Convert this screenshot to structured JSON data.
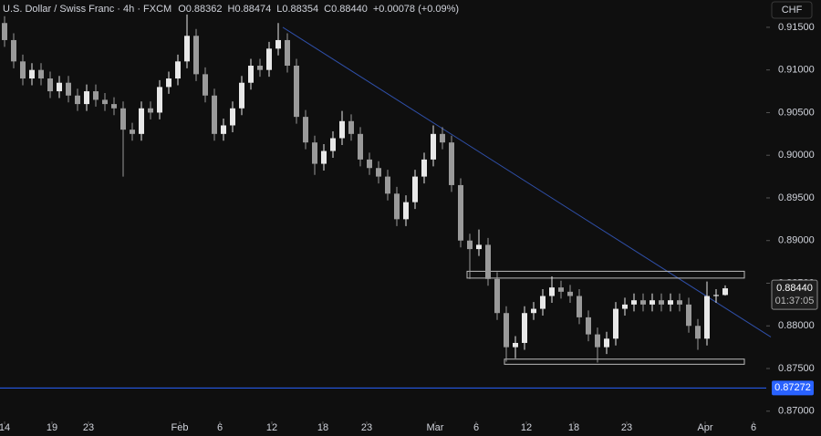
{
  "chart_data": {
    "type": "candlestick",
    "header": {
      "title": "U.S. Dollar / Swiss Franc · 4h · FXCM",
      "open": "O0.88362",
      "high": "H0.88474",
      "low": "L0.88354",
      "close": "C0.88440",
      "change": "+0.00078 (+0.09%)"
    },
    "currency": "CHF",
    "up_color": "#e8e8e8",
    "down_color": "#9a9a9a",
    "x": [
      0,
      1,
      2,
      3,
      4,
      5,
      6,
      7,
      8,
      9,
      10,
      11,
      12,
      13,
      14,
      15,
      16,
      17,
      18,
      19,
      20,
      21,
      22,
      23,
      24,
      25,
      26,
      27,
      28,
      29,
      30,
      31,
      32,
      33,
      34,
      35,
      36,
      37,
      38,
      39,
      40,
      41,
      42,
      43,
      44,
      45,
      46,
      47,
      48,
      49,
      50,
      51,
      52,
      53,
      54,
      55,
      56,
      57,
      58,
      59,
      60,
      61,
      62,
      63,
      64,
      65,
      66,
      67,
      68,
      69,
      70,
      71,
      72,
      73,
      74,
      75,
      76,
      77,
      78,
      79
    ],
    "open": [
      0.9155,
      0.9135,
      0.911,
      0.909,
      0.91,
      0.909,
      0.9075,
      0.9085,
      0.907,
      0.906,
      0.9075,
      0.9065,
      0.906,
      0.9055,
      0.903,
      0.9025,
      0.9055,
      0.905,
      0.908,
      0.909,
      0.911,
      0.914,
      0.9095,
      0.907,
      0.9025,
      0.9035,
      0.9055,
      0.9085,
      0.9105,
      0.91,
      0.9125,
      0.9135,
      0.9105,
      0.9045,
      0.9015,
      0.899,
      0.9005,
      0.902,
      0.904,
      0.9025,
      0.8995,
      0.8985,
      0.8975,
      0.8955,
      0.8925,
      0.8945,
      0.8975,
      0.8995,
      0.9025,
      0.9015,
      0.8965,
      0.89,
      0.889,
      0.8895,
      0.8855,
      0.8815,
      0.8775,
      0.878,
      0.8815,
      0.882,
      0.8835,
      0.8845,
      0.884,
      0.8835,
      0.881,
      0.879,
      0.8775,
      0.8785,
      0.882,
      0.8825,
      0.883,
      0.8825,
      0.883,
      0.8825,
      0.883,
      0.8825,
      0.88,
      0.8785,
      0.8835,
      0.88362
    ],
    "high": [
      0.9163,
      0.9143,
      0.9118,
      0.9108,
      0.9108,
      0.9098,
      0.9093,
      0.9093,
      0.9078,
      0.9083,
      0.9083,
      0.9073,
      0.9068,
      0.9063,
      0.9038,
      0.9063,
      0.9063,
      0.9088,
      0.9098,
      0.9118,
      0.9165,
      0.9148,
      0.9103,
      0.9078,
      0.9043,
      0.9063,
      0.9093,
      0.9113,
      0.9113,
      0.9133,
      0.9155,
      0.9143,
      0.9113,
      0.9053,
      0.9023,
      0.9013,
      0.9028,
      0.9052,
      0.9048,
      0.9033,
      0.9003,
      0.8993,
      0.8983,
      0.8963,
      0.8953,
      0.8983,
      0.9003,
      0.9035,
      0.9033,
      0.9023,
      0.8973,
      0.8908,
      0.8913,
      0.8903,
      0.8863,
      0.8823,
      0.8788,
      0.8823,
      0.8828,
      0.8843,
      0.8858,
      0.8853,
      0.8848,
      0.8843,
      0.8818,
      0.8798,
      0.8793,
      0.8828,
      0.8833,
      0.8838,
      0.8838,
      0.8838,
      0.8838,
      0.8838,
      0.8838,
      0.8833,
      0.8808,
      0.8852,
      0.8843,
      0.88474
    ],
    "low": [
      0.9127,
      0.9102,
      0.9082,
      0.9082,
      0.9082,
      0.9067,
      0.9067,
      0.9062,
      0.9052,
      0.9052,
      0.9057,
      0.9052,
      0.9047,
      0.8975,
      0.9017,
      0.9017,
      0.9042,
      0.9042,
      0.9072,
      0.9082,
      0.9102,
      0.9087,
      0.9062,
      0.9017,
      0.9017,
      0.9027,
      0.9047,
      0.9077,
      0.9092,
      0.9092,
      0.9117,
      0.9097,
      0.9037,
      0.9007,
      0.8977,
      0.8982,
      0.8997,
      0.9012,
      0.9017,
      0.8987,
      0.8977,
      0.8967,
      0.8947,
      0.8917,
      0.8917,
      0.8937,
      0.8967,
      0.8987,
      0.9007,
      0.8957,
      0.8892,
      0.8855,
      0.8882,
      0.8847,
      0.8807,
      0.8758,
      0.8762,
      0.8772,
      0.8807,
      0.8812,
      0.8827,
      0.8832,
      0.8827,
      0.8802,
      0.8782,
      0.8757,
      0.8767,
      0.8777,
      0.8812,
      0.8817,
      0.8817,
      0.8817,
      0.8817,
      0.8817,
      0.8817,
      0.8792,
      0.8772,
      0.8777,
      0.8827,
      0.88354
    ],
    "close": [
      0.9135,
      0.911,
      0.909,
      0.91,
      0.909,
      0.9075,
      0.9085,
      0.907,
      0.906,
      0.9075,
      0.9065,
      0.906,
      0.9055,
      0.903,
      0.9025,
      0.9055,
      0.905,
      0.908,
      0.909,
      0.911,
      0.914,
      0.9095,
      0.907,
      0.9025,
      0.9035,
      0.9055,
      0.9085,
      0.9105,
      0.91,
      0.9125,
      0.9135,
      0.9105,
      0.9045,
      0.9015,
      0.899,
      0.9005,
      0.902,
      0.904,
      0.9025,
      0.8995,
      0.8985,
      0.8975,
      0.8955,
      0.8925,
      0.8945,
      0.8975,
      0.8995,
      0.9025,
      0.9015,
      0.8965,
      0.89,
      0.889,
      0.8895,
      0.8855,
      0.8815,
      0.8775,
      0.878,
      0.8815,
      0.882,
      0.8835,
      0.8845,
      0.884,
      0.8835,
      0.881,
      0.879,
      0.8775,
      0.8785,
      0.882,
      0.8825,
      0.883,
      0.8825,
      0.883,
      0.8825,
      0.883,
      0.8825,
      0.88,
      0.8785,
      0.8835,
      0.88362,
      0.8844
    ],
    "xlim": [
      -0.5,
      83.5
    ],
    "xticks": [
      {
        "value": 0,
        "label": "14"
      },
      {
        "value": 5.2,
        "label": "19"
      },
      {
        "value": 9.2,
        "label": "23"
      },
      {
        "value": 19.2,
        "label": "Feb"
      },
      {
        "value": 23.6,
        "label": "6"
      },
      {
        "value": 29.3,
        "label": "12"
      },
      {
        "value": 34.9,
        "label": "18"
      },
      {
        "value": 39.7,
        "label": "23"
      },
      {
        "value": 47.2,
        "label": "Mar"
      },
      {
        "value": 51.7,
        "label": "6"
      },
      {
        "value": 57.2,
        "label": "12"
      },
      {
        "value": 62.4,
        "label": "18"
      },
      {
        "value": 68.2,
        "label": "23"
      },
      {
        "value": 76.8,
        "label": "Apr"
      },
      {
        "value": 82.1,
        "label": "6"
      }
    ],
    "ylim": [
      0.8688,
      0.9182
    ],
    "yticks": [
      {
        "value": 0.915,
        "label": "0.91500"
      },
      {
        "value": 0.91,
        "label": "0.91000"
      },
      {
        "value": 0.905,
        "label": "0.90500"
      },
      {
        "value": 0.9,
        "label": "0.90000"
      },
      {
        "value": 0.895,
        "label": "0.89500"
      },
      {
        "value": 0.89,
        "label": "0.89000"
      },
      {
        "value": 0.885,
        "label": "0.88500"
      },
      {
        "value": 0.88,
        "label": "0.88000"
      },
      {
        "value": 0.875,
        "label": "0.87500"
      },
      {
        "value": 0.87,
        "label": "0.87000"
      }
    ],
    "trendline": {
      "x": [
        30.5,
        84
      ],
      "y": [
        0.915,
        0.8787
      ],
      "color": "#2f4fa8"
    },
    "boxes": [
      {
        "x": [
          50.7,
          81.1
        ],
        "y": [
          0.8864,
          0.8856
        ]
      },
      {
        "x": [
          54.8,
          81.1
        ],
        "y": [
          0.8761,
          0.8755
        ]
      }
    ],
    "level": {
      "value": 0.87272,
      "label": "0.87272",
      "color": "#2962ff"
    },
    "last_price": {
      "value": 0.8844,
      "label": "0.88440",
      "countdown": "01:37:05"
    }
  }
}
